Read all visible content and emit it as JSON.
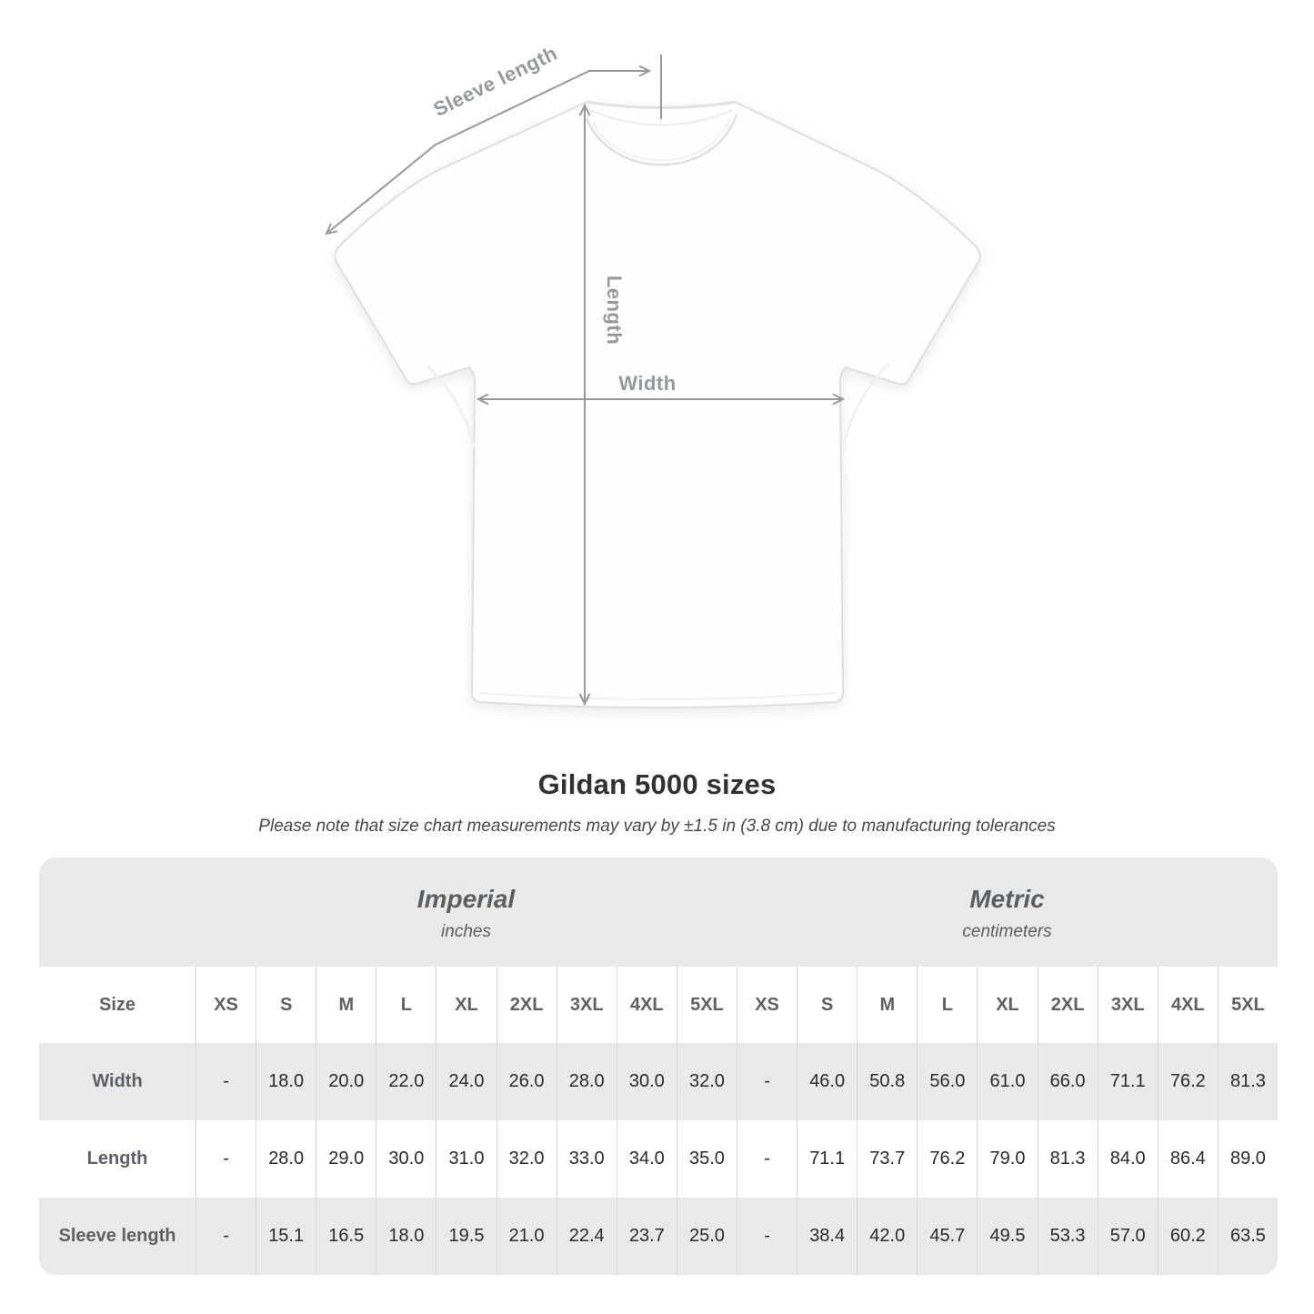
{
  "title": "Gildan 5000 sizes",
  "subtitle": "Please note that size chart measurements may vary by ±1.5 in (3.8 cm) due to manufacturing tolerances",
  "diagram": {
    "sleeve_label": "Sleeve length",
    "length_label": "Length",
    "width_label": "Width",
    "arrow_color": "#939a9e"
  },
  "table": {
    "size_header": "Size",
    "sections": [
      {
        "title": "Imperial",
        "unit": "inches"
      },
      {
        "title": "Metric",
        "unit": "centimeters"
      }
    ],
    "sizes": [
      "XS",
      "S",
      "M",
      "L",
      "XL",
      "2XL",
      "3XL",
      "4XL",
      "5XL"
    ],
    "rows": [
      {
        "label": "Width",
        "imperial": [
          "-",
          "18.0",
          "20.0",
          "22.0",
          "24.0",
          "26.0",
          "28.0",
          "30.0",
          "32.0"
        ],
        "metric": [
          "-",
          "46.0",
          "50.8",
          "56.0",
          "61.0",
          "66.0",
          "71.1",
          "76.2",
          "81.3"
        ]
      },
      {
        "label": "Length",
        "imperial": [
          "-",
          "28.0",
          "29.0",
          "30.0",
          "31.0",
          "32.0",
          "33.0",
          "34.0",
          "35.0"
        ],
        "metric": [
          "-",
          "71.1",
          "73.7",
          "76.2",
          "79.0",
          "81.3",
          "84.0",
          "86.4",
          "89.0"
        ]
      },
      {
        "label": "Sleeve length",
        "imperial": [
          "-",
          "15.1",
          "16.5",
          "18.0",
          "19.5",
          "21.0",
          "22.4",
          "23.7",
          "25.0"
        ],
        "metric": [
          "-",
          "38.4",
          "42.0",
          "45.7",
          "49.5",
          "53.3",
          "57.0",
          "60.2",
          "63.5"
        ]
      }
    ]
  },
  "colors": {
    "band_bg": "#e9e9e9",
    "alt_row_bg": "#e9e9e9",
    "grid_line": "#d7d7d7",
    "header_text": "#5b6166",
    "data_text": "#2b2b2b",
    "title_text": "#2f3133"
  }
}
